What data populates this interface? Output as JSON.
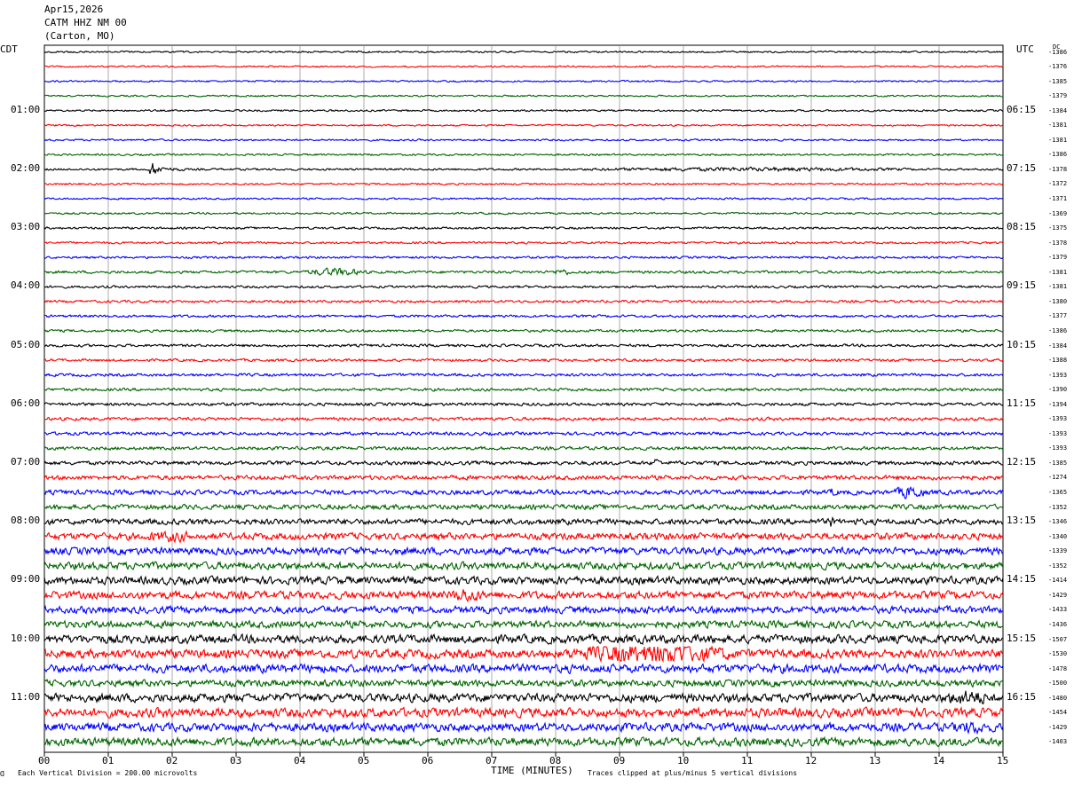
{
  "header": {
    "date": "Apr15,2026",
    "station": "CATM HHZ NM 00",
    "location": "(Carton, MO)"
  },
  "left_axis_label": "CDT",
  "right_axis_label": "UTC",
  "dc_label": "DC",
  "footer": {
    "vertical_division": "Each Vertical Division =  200.00 microvolts",
    "clip_note": "Traces clipped at plus/minus 5 vertical divisions",
    "marker": "Ɑ"
  },
  "colors": {
    "line1": "#000000",
    "line2": "#ff0000",
    "line3": "#0000ff",
    "line4": "#006400",
    "grid": "#888888"
  },
  "chart_data": {
    "type": "line",
    "title": "CATM HHZ NM 00 (Carton, MO) Apr15,2026",
    "xlabel": "TIME (MINUTES)",
    "ylabel": "",
    "xlim": [
      0,
      15
    ],
    "x_ticks": [
      "00",
      "01",
      "02",
      "03",
      "04",
      "05",
      "06",
      "07",
      "08",
      "09",
      "10",
      "11",
      "12",
      "13",
      "14",
      "15"
    ],
    "grid": true,
    "left_ticks": [
      "01:00",
      "02:00",
      "03:00",
      "04:00",
      "05:00",
      "06:00",
      "07:00",
      "08:00",
      "09:00",
      "10:00",
      "11:00"
    ],
    "right_ticks": [
      "06:15",
      "07:15",
      "08:15",
      "09:15",
      "10:15",
      "11:15",
      "12:15",
      "13:15",
      "14:15",
      "15:15",
      "16:15"
    ],
    "dc_values": [
      "-1386",
      "-1376",
      "-1385",
      "-1379",
      "-1384",
      "-1381",
      "-1381",
      "-1386",
      "-1378",
      "-1372",
      "-1371",
      "-1369",
      "-1375",
      "-1378",
      "-1379",
      "-1381",
      "-1381",
      "-1380",
      "-1377",
      "-1386",
      "-1384",
      "-1388",
      "-1393",
      "-1390",
      "-1394",
      "-1393",
      "-1393",
      "-1393",
      "-1385",
      "-1274",
      "-1365",
      "-1352",
      "-1346",
      "-1340",
      "-1339",
      "-1352",
      "-1414",
      "-1429",
      "-1433",
      "-1436",
      "-1507",
      "-1530",
      "-1478",
      "-1500",
      "-1480",
      "-1454",
      "-1429",
      "-1403"
    ],
    "traces_count": 48,
    "trace_amplitude": [
      1.0,
      1.0,
      1.0,
      1.0,
      1.1,
      1.0,
      1.1,
      1.1,
      1.2,
      1.1,
      1.1,
      1.1,
      1.3,
      1.3,
      1.3,
      1.6,
      1.4,
      1.5,
      1.5,
      1.5,
      1.6,
      1.6,
      1.7,
      1.7,
      1.8,
      1.9,
      1.9,
      2.0,
      2.3,
      2.6,
      2.8,
      3.0,
      3.4,
      4.0,
      4.3,
      4.3,
      4.6,
      4.6,
      4.2,
      4.2,
      5.0,
      5.2,
      5.0,
      4.0,
      5.0,
      5.4,
      5.0,
      5.0
    ],
    "events": [
      {
        "trace": 8,
        "start_min": 1.65,
        "end_min": 2.2,
        "peak": 13,
        "shape": "burst"
      },
      {
        "trace": 8,
        "start_min": 7.0,
        "end_min": 15.0,
        "peak": 2.5,
        "shape": "swell"
      },
      {
        "trace": 15,
        "start_min": 3.9,
        "end_min": 5.2,
        "peak": 5,
        "shape": "swell"
      },
      {
        "trace": 15,
        "start_min": 7.9,
        "end_min": 8.3,
        "peak": 4,
        "shape": "swell"
      },
      {
        "trace": 28,
        "start_min": 9.55,
        "end_min": 9.95,
        "peak": 7,
        "shape": "burst"
      },
      {
        "trace": 30,
        "start_min": 12.3,
        "end_min": 12.6,
        "peak": 9,
        "shape": "burst"
      },
      {
        "trace": 30,
        "start_min": 13.2,
        "end_min": 13.9,
        "peak": 8,
        "shape": "swell"
      },
      {
        "trace": 32,
        "start_min": 12.3,
        "end_min": 12.5,
        "peak": 11,
        "shape": "burst"
      },
      {
        "trace": 32,
        "start_min": 12.7,
        "end_min": 13.0,
        "peak": 8,
        "shape": "burst"
      },
      {
        "trace": 33,
        "start_min": 1.3,
        "end_min": 2.6,
        "peak": 7,
        "shape": "swell"
      },
      {
        "trace": 37,
        "start_min": 6.2,
        "end_min": 7.0,
        "peak": 9,
        "shape": "swell"
      },
      {
        "trace": 41,
        "start_min": 7.6,
        "end_min": 11.4,
        "peak": 13,
        "shape": "swell"
      },
      {
        "trace": 44,
        "start_min": 13.9,
        "end_min": 15.0,
        "peak": 10,
        "shape": "swell"
      },
      {
        "trace": 46,
        "start_min": 14.0,
        "end_min": 15.0,
        "peak": 8,
        "shape": "swell"
      }
    ]
  }
}
